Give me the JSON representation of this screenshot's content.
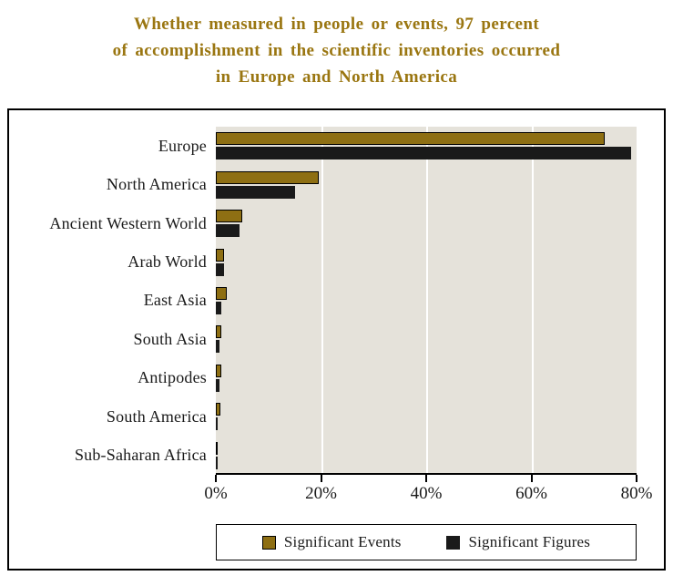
{
  "title_lines": [
    "Whether measured in people or events, 97 percent",
    "of accomplishment in the scientific inventories occurred",
    "in Europe and North America"
  ],
  "chart_data": {
    "type": "bar",
    "orientation": "horizontal",
    "title": "Whether measured in people or events, 97 percent of accomplishment in the scientific inventories occurred in Europe and North America",
    "title_color": "#9a7611",
    "categories": [
      "Europe",
      "North America",
      "Ancient Western World",
      "Arab World",
      "East Asia",
      "South Asia",
      "Antipodes",
      "South America",
      "Sub-Saharan Africa"
    ],
    "series": [
      {
        "name": "Significant Events",
        "color": "#8e6f13",
        "values": [
          74,
          19.5,
          5,
          1.5,
          2,
          1,
          1,
          0.8,
          0.3
        ]
      },
      {
        "name": "Significant Figures",
        "color": "#1a1a1a",
        "values": [
          79,
          15,
          4.5,
          1.5,
          1,
          0.7,
          0.7,
          0.4,
          0.3
        ]
      }
    ],
    "xlabel": "",
    "ylabel": "",
    "xlim": [
      0,
      80
    ],
    "x_ticks": [
      "0%",
      "20%",
      "40%",
      "60%",
      "80%"
    ],
    "grid": true,
    "plot_background": "#e5e2da",
    "legend_position": "bottom"
  }
}
